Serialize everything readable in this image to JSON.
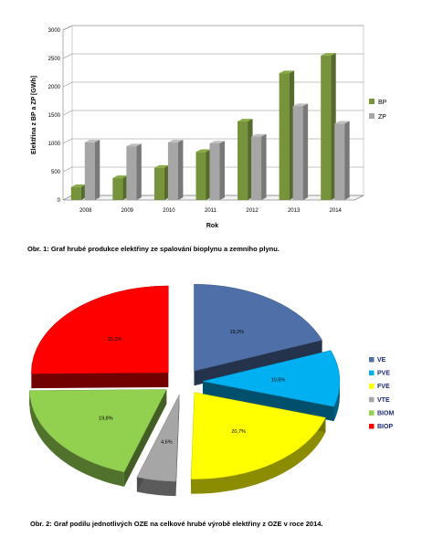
{
  "chart_data": [
    {
      "type": "bar",
      "xlabel": "Rok",
      "ylabel": "Elektřina z BP a ZP [GWh]",
      "ylim": [
        0,
        3000
      ],
      "yticks": [
        "0",
        "500",
        "1000",
        "1500",
        "2000",
        "2500",
        "3000"
      ],
      "categories": [
        "2008",
        "2009",
        "2010",
        "2011",
        "2012",
        "2013",
        "2014"
      ],
      "series": [
        {
          "name": "BP",
          "values": [
            230,
            390,
            570,
            850,
            1390,
            2240,
            2550
          ],
          "color": "#77933c"
        },
        {
          "name": "ZP",
          "values": [
            1020,
            950,
            1020,
            1000,
            1120,
            1660,
            1350
          ],
          "color": "#a6a6a6"
        }
      ],
      "grid": true,
      "legend": "right",
      "style": "3d"
    },
    {
      "type": "pie",
      "style": "3d-exploded",
      "slices": [
        {
          "name": "VE",
          "label": "19,2%",
          "value": 19.2,
          "color": "#4f6fa8"
        },
        {
          "name": "PVE",
          "label": "10,5%",
          "value": 10.5,
          "color": "#00b0f0"
        },
        {
          "name": "FVE",
          "label": "20,7%",
          "value": 20.7,
          "color": "#ffff00"
        },
        {
          "name": "VTE",
          "label": "4,6%",
          "value": 4.6,
          "color": "#a6a6a6"
        },
        {
          "name": "BIOM",
          "label": "19,8%",
          "value": 19.8,
          "color": "#92d050"
        },
        {
          "name": "BIOP",
          "label": "25,2%",
          "value": 25.2,
          "color": "#ff0000"
        }
      ],
      "legend": "right"
    }
  ],
  "captions": {
    "bar": "Obr. 1: Graf hrubé produkce elektřiny ze spalování bioplynu a zemního plynu.",
    "pie": "Obr. 2: Graf podílu jednotlivých OZE na celkové hrubé výrobě elektřiny z OZE v roce 2014."
  }
}
